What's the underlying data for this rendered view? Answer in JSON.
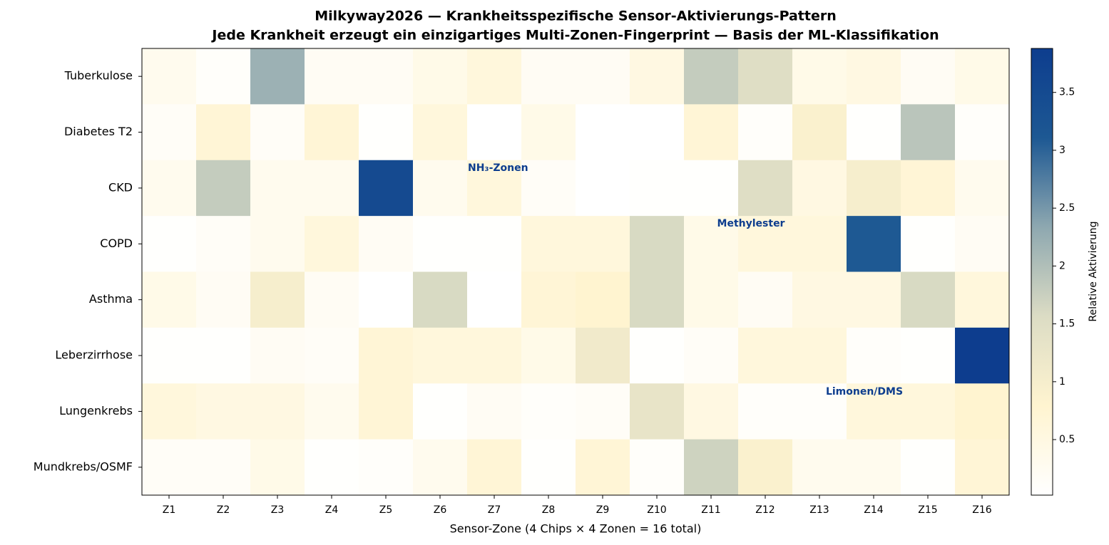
{
  "chart_data": {
    "type": "heatmap",
    "title": "Milkyway2026 — Krankheitsspezifische Sensor-Aktivierungs-Pattern",
    "subtitle": "Jede Krankheit erzeugt ein einzigartiges Multi-Zonen-Fingerprint — Basis der ML-Klassifikation",
    "x_label": "Sensor-Zone (4 Chips × 4 Zonen = 16 total)",
    "categories": [
      "Z1",
      "Z2",
      "Z3",
      "Z4",
      "Z5",
      "Z6",
      "Z7",
      "Z8",
      "Z9",
      "Z10",
      "Z11",
      "Z12",
      "Z13",
      "Z14",
      "Z15",
      "Z16"
    ],
    "series": [
      {
        "name": "Tuberkulose",
        "values": [
          0.3,
          0.1,
          2.2,
          0.2,
          0.2,
          0.4,
          0.6,
          0.2,
          0.2,
          0.5,
          1.8,
          1.5,
          0.4,
          0.5,
          0.2,
          0.4
        ]
      },
      {
        "name": "Diabetes T2",
        "values": [
          0.15,
          0.7,
          0.15,
          0.7,
          0.05,
          0.6,
          0.02,
          0.4,
          0.02,
          0.02,
          0.7,
          0.1,
          0.9,
          0.05,
          1.9,
          0.1
        ]
      },
      {
        "name": "CKD",
        "values": [
          0.3,
          1.8,
          0.3,
          0.3,
          3.5,
          0.3,
          0.6,
          0.15,
          0.02,
          0.05,
          0.05,
          1.5,
          0.5,
          1.0,
          0.7,
          0.3
        ]
      },
      {
        "name": "COPD",
        "values": [
          0.05,
          0.15,
          0.3,
          0.6,
          0.2,
          0.05,
          0.05,
          0.6,
          0.6,
          1.6,
          0.4,
          0.6,
          0.6,
          3.1,
          0.05,
          0.2
        ]
      },
      {
        "name": "Asthma",
        "values": [
          0.4,
          0.2,
          1.0,
          0.2,
          0.02,
          1.6,
          0.02,
          0.7,
          0.8,
          1.6,
          0.4,
          0.2,
          0.5,
          0.5,
          1.6,
          0.6
        ]
      },
      {
        "name": "Leberzirrhose",
        "values": [
          0.05,
          0.05,
          0.2,
          0.15,
          0.7,
          0.6,
          0.6,
          0.4,
          1.1,
          0.05,
          0.15,
          0.6,
          0.6,
          0.1,
          0.05,
          3.88
        ]
      },
      {
        "name": "Lungenkrebs",
        "values": [
          0.6,
          0.5,
          0.5,
          0.3,
          0.7,
          0.05,
          0.2,
          0.1,
          0.15,
          1.3,
          0.5,
          0.1,
          0.1,
          0.6,
          0.6,
          0.8
        ]
      },
      {
        "name": "Mundkrebs/OSMF",
        "values": [
          0.15,
          0.15,
          0.4,
          0.05,
          0.1,
          0.3,
          0.7,
          0.05,
          0.7,
          0.1,
          1.7,
          0.9,
          0.3,
          0.3,
          0.05,
          0.7
        ]
      }
    ],
    "colorscale": [
      "#ffffff",
      "#fff4d0",
      "#dcdcc4",
      "#8ea8b0",
      "#1d5893",
      "#0d3d8e"
    ],
    "colorbar": {
      "label": "Relative Aktivierung",
      "lim": [
        0.02,
        3.88
      ],
      "ticks": [
        0.5,
        1.0,
        1.5,
        2.0,
        2.5,
        3.0,
        3.5
      ]
    },
    "annotations": [
      "NH₃-Zonen",
      "Methylester",
      "Limonen/DMS"
    ],
    "annotation_color": "#0d3d8e"
  }
}
